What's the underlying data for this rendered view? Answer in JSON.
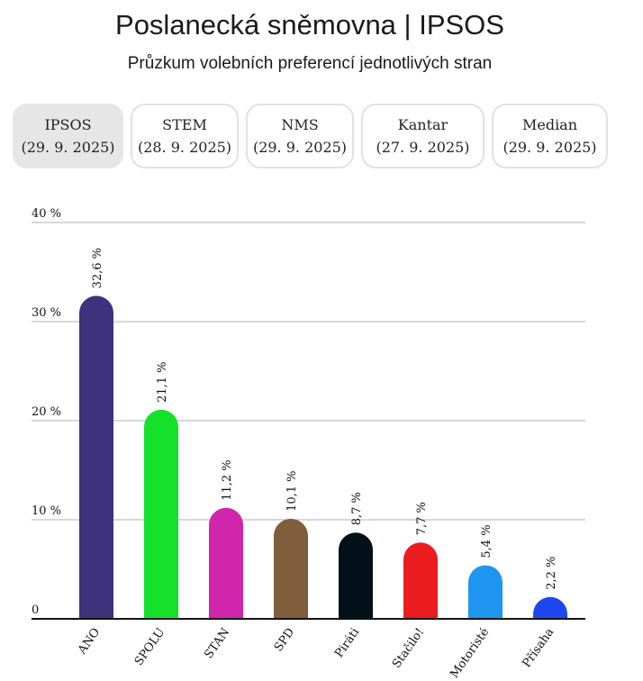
{
  "header": {
    "title": "Poslanecká sněmovna | IPSOS",
    "subtitle": "Průzkum volebních preferencí jednotlivých stran"
  },
  "tabs": [
    {
      "name": "IPSOS",
      "date": "(29. 9. 2025)",
      "active": true
    },
    {
      "name": "STEM",
      "date": "(28. 9. 2025)"
    },
    {
      "name": "NMS",
      "date": "(29. 9. 2025)"
    },
    {
      "name": "Kantar",
      "date": "(27. 9. 2025)"
    },
    {
      "name": "Median",
      "date": "(29. 9. 2025)"
    }
  ],
  "chart_data": {
    "type": "bar",
    "categories": [
      "ANO",
      "SPOLU",
      "STAN",
      "SPD",
      "Piráti",
      "Stačilo!",
      "Motoristé",
      "Přísaha"
    ],
    "values": [
      32.6,
      21.1,
      11.2,
      10.1,
      8.7,
      7.7,
      5.4,
      2.2
    ],
    "value_labels": [
      "32,6 %",
      "21,1 %",
      "11,2 %",
      "10,1 %",
      "8,7 %",
      "7,7 %",
      "5,4 %",
      "2,2 %"
    ],
    "colors": [
      "#3f327d",
      "#15e02a",
      "#d026ab",
      "#805d3b",
      "#02101a",
      "#ea1c1f",
      "#1e96f0",
      "#1d47ef"
    ],
    "yticks": [
      0,
      10,
      20,
      30,
      40
    ],
    "ytick_labels": [
      "0",
      "10 %",
      "20 %",
      "30 %",
      "40 %"
    ],
    "ylim": [
      0,
      40
    ],
    "grid": true
  }
}
